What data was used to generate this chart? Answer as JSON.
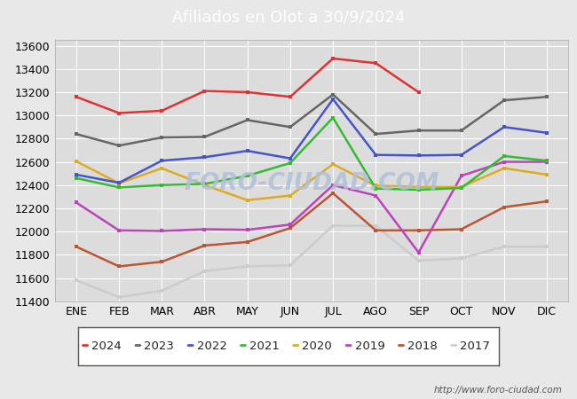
{
  "title": "Afiliados en Olot a 30/9/2024",
  "title_color": "white",
  "title_bg_color": "#4a86c8",
  "ylim": [
    11400,
    13650
  ],
  "yticks": [
    11400,
    11600,
    11800,
    12000,
    12200,
    12400,
    12600,
    12800,
    13000,
    13200,
    13400,
    13600
  ],
  "months": [
    "ENE",
    "FEB",
    "MAR",
    "ABR",
    "MAY",
    "JUN",
    "JUL",
    "AGO",
    "SEP",
    "OCT",
    "NOV",
    "DIC"
  ],
  "url": "http://www.foro-ciudad.com",
  "watermark": "FORO-CIUDAD.COM",
  "series": {
    "2024": {
      "color": "#dd3333",
      "values": [
        13160,
        13020,
        13040,
        13210,
        13200,
        13160,
        13490,
        13450,
        13200,
        null,
        null,
        null
      ]
    },
    "2023": {
      "color": "#666666",
      "values": [
        12840,
        12740,
        12810,
        12815,
        12960,
        12900,
        13180,
        12840,
        12870,
        12870,
        13130,
        13160
      ]
    },
    "2022": {
      "color": "#4455cc",
      "values": [
        12490,
        12420,
        12610,
        12640,
        12695,
        12630,
        13140,
        12660,
        12655,
        12660,
        12900,
        12850
      ]
    },
    "2021": {
      "color": "#33bb33",
      "values": [
        12460,
        12380,
        12400,
        12410,
        12480,
        12590,
        12980,
        12370,
        12360,
        12375,
        12650,
        12610
      ]
    },
    "2020": {
      "color": "#ddaa22",
      "values": [
        12605,
        12415,
        12545,
        12400,
        12270,
        12310,
        12580,
        12395,
        12385,
        12385,
        12545,
        12490
      ]
    },
    "2019": {
      "color": "#bb44bb",
      "values": [
        12250,
        12010,
        12005,
        12020,
        12015,
        12060,
        12400,
        12310,
        11820,
        12480,
        12600,
        12600
      ]
    },
    "2018": {
      "color": "#bb5533",
      "values": [
        11870,
        11700,
        11740,
        11880,
        11910,
        12030,
        12330,
        12010,
        12010,
        12020,
        12210,
        12260
      ]
    },
    "2017": {
      "color": "#cccccc",
      "values": [
        11580,
        11435,
        11490,
        11660,
        11700,
        11710,
        12050,
        12050,
        11750,
        11770,
        11870,
        11870
      ]
    }
  },
  "legend_order": [
    "2024",
    "2023",
    "2022",
    "2021",
    "2020",
    "2019",
    "2018",
    "2017"
  ],
  "fig_bg_color": "#e8e8e8",
  "plot_bg_color": "#dcdcdc",
  "grid_color": "white",
  "tick_fontsize": 9,
  "legend_fontsize": 9.5
}
